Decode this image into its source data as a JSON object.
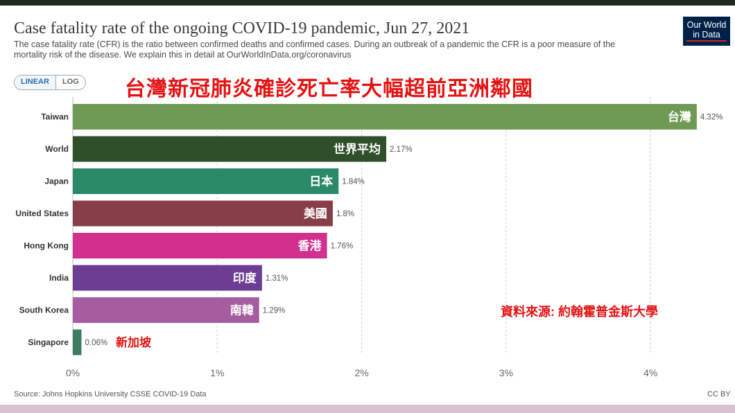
{
  "header": {
    "title": "Case fatality rate of the ongoing COVID-19 pandemic, Jun 27, 2021",
    "subtitle": "The case fatality rate (CFR) is the ratio between confirmed deaths and confirmed cases. During an outbreak of a pandemic the CFR is a poor measure of the mortality risk of the disease. We explain this in detail at OurWorldInData.org/coronavirus",
    "logo_line1": "Our World",
    "logo_line2": "in Data"
  },
  "toggle": {
    "linear": "LINEAR",
    "log": "LOG",
    "selected": "LINEAR"
  },
  "annotations": {
    "headline": "台灣新冠肺炎確診死亡率大幅超前亞洲鄰國",
    "source_note": "資料來源: 約翰霍普金斯大學",
    "singapore_note": "新加坡"
  },
  "footer": {
    "source": "Source: Johns Hopkins University CSSE COVID-19 Data",
    "license": "CC BY"
  },
  "chart_data": {
    "type": "bar",
    "orientation": "horizontal",
    "title": "Case fatality rate of the ongoing COVID-19 pandemic, Jun 27, 2021",
    "xlim": [
      0,
      4.4
    ],
    "ticks": [
      0,
      1,
      2,
      3,
      4
    ],
    "tick_labels": [
      "0%",
      "1%",
      "2%",
      "3%",
      "4%"
    ],
    "grid": true,
    "categories": [
      "Taiwan",
      "World",
      "Japan",
      "United States",
      "Hong Kong",
      "India",
      "South Korea",
      "Singapore"
    ],
    "values": [
      4.32,
      2.17,
      1.84,
      1.8,
      1.76,
      1.31,
      1.29,
      0.06
    ],
    "value_labels": [
      "4.32%",
      "2.17%",
      "1.84%",
      "1.8%",
      "1.76%",
      "1.31%",
      "1.29%",
      "0.06%"
    ],
    "inbar_labels": [
      "台灣",
      "世界平均",
      "日本",
      "美國",
      "香港",
      "印度",
      "南韓",
      ""
    ],
    "colors": [
      "#6e9a55",
      "#2f4f2a",
      "#2a8a68",
      "#883e48",
      "#d22f8e",
      "#6c3d93",
      "#a65d9f",
      "#3c7d60"
    ]
  }
}
